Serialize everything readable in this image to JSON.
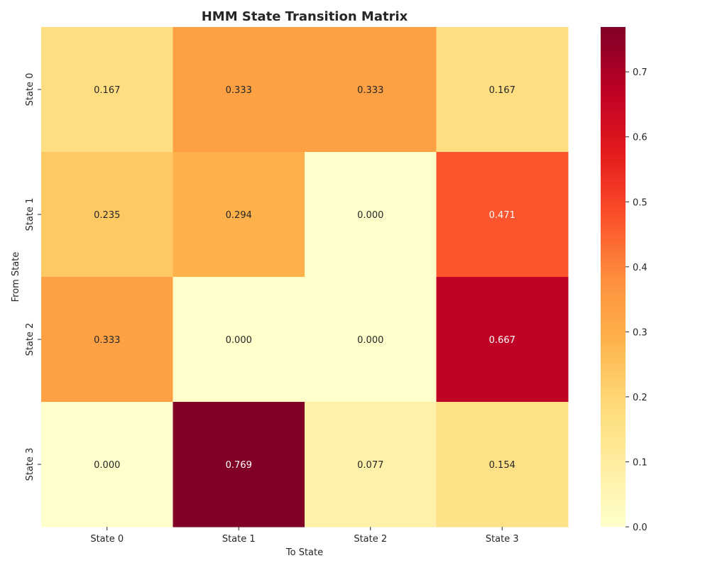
{
  "chart_data": {
    "type": "heatmap",
    "title": "HMM State Transition Matrix",
    "xlabel": "To State",
    "ylabel": "From State",
    "x_categories": [
      "State 0",
      "State 1",
      "State 2",
      "State 3"
    ],
    "y_categories": [
      "State 0",
      "State 1",
      "State 2",
      "State 3"
    ],
    "values": [
      [
        0.167,
        0.333,
        0.333,
        0.167
      ],
      [
        0.235,
        0.294,
        0.0,
        0.471
      ],
      [
        0.333,
        0.0,
        0.0,
        0.667
      ],
      [
        0.0,
        0.769,
        0.077,
        0.154
      ]
    ],
    "value_labels": [
      [
        "0.167",
        "0.333",
        "0.333",
        "0.167"
      ],
      [
        "0.235",
        "0.294",
        "0.000",
        "0.471"
      ],
      [
        "0.333",
        "0.000",
        "0.000",
        "0.667"
      ],
      [
        "0.000",
        "0.769",
        "0.077",
        "0.154"
      ]
    ],
    "colormap": "YlOrRd",
    "colorbar": {
      "min": 0.0,
      "max": 0.769,
      "ticks": [
        0.0,
        0.1,
        0.2,
        0.3,
        0.4,
        0.5,
        0.6,
        0.7
      ],
      "tick_labels": [
        "0.0",
        "0.1",
        "0.2",
        "0.3",
        "0.4",
        "0.5",
        "0.6",
        "0.7"
      ]
    },
    "grid": false
  },
  "colors": {
    "text_dark": "#262626",
    "text_light": "#ffffff",
    "colormap_stops": [
      "#ffffcc",
      "#ffeda0",
      "#fed976",
      "#feb24c",
      "#fd8d3c",
      "#fc4e2a",
      "#e31a1c",
      "#bd0026",
      "#800026"
    ]
  }
}
